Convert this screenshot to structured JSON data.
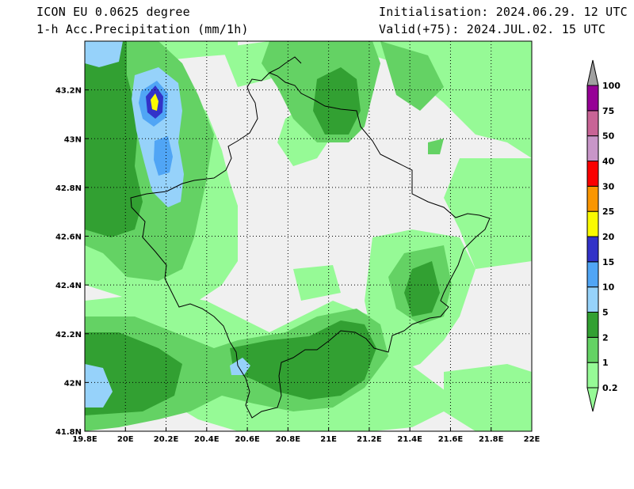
{
  "header": {
    "model": "ICON EU 0.0625 degree",
    "variable": "1-h Acc.Precipitation (mm/1h)",
    "init": "Initialisation: 2024.06.29. 12 UTC",
    "valid": "Valid(+75): 2024.JUL.02. 15 UTC"
  },
  "map": {
    "lon_range": [
      19.8,
      22.0
    ],
    "lat_range": [
      41.8,
      43.4
    ],
    "x_ticks": [
      {
        "value": 19.8,
        "label": "19.8E"
      },
      {
        "value": 20.0,
        "label": "20E"
      },
      {
        "value": 20.2,
        "label": "20.2E"
      },
      {
        "value": 20.4,
        "label": "20.4E"
      },
      {
        "value": 20.6,
        "label": "20.6E"
      },
      {
        "value": 20.8,
        "label": "20.8E"
      },
      {
        "value": 21.0,
        "label": "21E"
      },
      {
        "value": 21.2,
        "label": "21.2E"
      },
      {
        "value": 21.4,
        "label": "21.4E"
      },
      {
        "value": 21.6,
        "label": "21.6E"
      },
      {
        "value": 21.8,
        "label": "21.8E"
      },
      {
        "value": 22.0,
        "label": "22E"
      }
    ],
    "y_ticks": [
      {
        "value": 41.8,
        "label": "41.8N"
      },
      {
        "value": 42.0,
        "label": "42N"
      },
      {
        "value": 42.2,
        "label": "42.2N"
      },
      {
        "value": 42.4,
        "label": "42.4N"
      },
      {
        "value": 42.6,
        "label": "42.6N"
      },
      {
        "value": 42.8,
        "label": "42.8N"
      },
      {
        "value": 43.0,
        "label": "43N"
      },
      {
        "value": 43.2,
        "label": "43.2N"
      }
    ],
    "grid": "dotted",
    "background_color": "#f0f0f0"
  },
  "colorbar": {
    "levels": [
      {
        "label": "0.2",
        "color": "#96fa96"
      },
      {
        "label": "1",
        "color": "#64d264"
      },
      {
        "label": "2",
        "color": "#32a032"
      },
      {
        "label": "5",
        "color": "#96d2fa"
      },
      {
        "label": "10",
        "color": "#50a5f5"
      },
      {
        "label": "15",
        "color": "#3232c8"
      },
      {
        "label": "20",
        "color": "#fafa00"
      },
      {
        "label": "25",
        "color": "#fa9600"
      },
      {
        "label": "30",
        "color": "#fa0000"
      },
      {
        "label": "40",
        "color": "#c896c8"
      },
      {
        "label": "50",
        "color": "#c86496"
      },
      {
        "label": "75",
        "color": "#960096"
      },
      {
        "label": "100",
        "color": "#a0a0a0"
      }
    ]
  }
}
